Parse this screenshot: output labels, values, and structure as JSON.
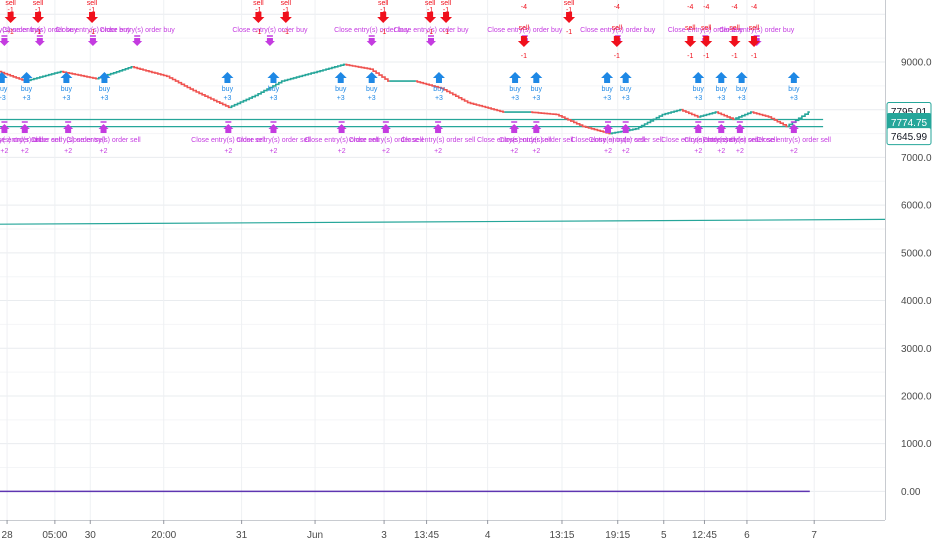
{
  "chart_data": {
    "type": "line",
    "title": "",
    "xlabel": "",
    "ylabel": "",
    "ylim": [
      -600,
      10300
    ],
    "y_ticks": [
      "0.00",
      "1000.00",
      "2000.00",
      "3000.00",
      "4000.00",
      "5000.00",
      "6000.00",
      "7000.00",
      "8000.00",
      "9000.00"
    ],
    "y_tick_values": [
      0,
      1000,
      2000,
      3000,
      4000,
      5000,
      6000,
      7000,
      8000,
      9000
    ],
    "x_range": [
      0,
      100
    ],
    "x_ticks": [
      {
        "label": "28",
        "x": 0.8
      },
      {
        "label": "05:00",
        "x": 6.2
      },
      {
        "label": "30",
        "x": 10.2
      },
      {
        "label": "20:00",
        "x": 18.5
      },
      {
        "label": "31",
        "x": 27.3
      },
      {
        "label": "Jun",
        "x": 35.6
      },
      {
        "label": "3",
        "x": 43.4
      },
      {
        "label": "13:45",
        "x": 48.2
      },
      {
        "label": "4",
        "x": 55.1
      },
      {
        "label": "13:15",
        "x": 63.5
      },
      {
        "label": "19:15",
        "x": 69.8
      },
      {
        "label": "5",
        "x": 75.0
      },
      {
        "label": "12:45",
        "x": 79.6
      },
      {
        "label": "6",
        "x": 84.4
      },
      {
        "label": "7",
        "x": 92.0
      }
    ],
    "price_tags": [
      {
        "label": "7795.01",
        "value": 7795.01,
        "style": "outline"
      },
      {
        "label": "7774.75",
        "value": 7774.75,
        "style": "filled"
      },
      {
        "label": "7645.99",
        "value": 7645.99,
        "style": "outline"
      }
    ],
    "series": [
      {
        "name": "price",
        "color_up": "#26a69a",
        "color_down": "#ef5350",
        "x": [
          0,
          3,
          7,
          11,
          15,
          19,
          22,
          26,
          29,
          32,
          35,
          39,
          42,
          44,
          47,
          50,
          53,
          57,
          60,
          63,
          66,
          69,
          72,
          75,
          77,
          79,
          81,
          83,
          85,
          87,
          89,
          91.5
        ],
        "values": [
          8800,
          8600,
          8800,
          8650,
          8900,
          8700,
          8400,
          8050,
          8300,
          8600,
          8750,
          8950,
          8850,
          8600,
          8600,
          8450,
          8150,
          7950,
          7950,
          7900,
          7650,
          7500,
          7600,
          7900,
          8000,
          7850,
          7950,
          7800,
          7950,
          7850,
          7650,
          7950
        ]
      },
      {
        "name": "upper-line",
        "color": "#26a69a",
        "x": [
          0,
          93
        ],
        "values": [
          7795.01,
          7795.01
        ]
      },
      {
        "name": "lower-line",
        "color": "#26a69a",
        "x": [
          0,
          93
        ],
        "values": [
          7645.99,
          7645.99
        ]
      },
      {
        "name": "trend-line",
        "color": "#26a69a",
        "x": [
          0,
          100
        ],
        "values": [
          5600,
          5700
        ]
      },
      {
        "name": "zero-line",
        "color": "#5e35b1",
        "x": [
          0,
          91.5
        ],
        "values": [
          0,
          0
        ]
      }
    ],
    "markers": [
      {
        "type": "close-buy",
        "x": 0.5,
        "label": "Close entry(s) order buy"
      },
      {
        "type": "close-buy",
        "x": 4.5,
        "label": "Close entry(s) order buy"
      },
      {
        "type": "close-buy",
        "x": 10.5,
        "label": "Close entry(s) order buy"
      },
      {
        "type": "close-buy",
        "x": 15.5,
        "label": "Close entry(s) order buy"
      },
      {
        "type": "close-buy",
        "x": 30.5,
        "label": "Close entry(s) order buy"
      },
      {
        "type": "close-buy",
        "x": 42.0,
        "label": "Close entry(s) order buy"
      },
      {
        "type": "close-buy",
        "x": 48.7,
        "label": "Close entry(s) order buy"
      },
      {
        "type": "close-buy",
        "x": 59.3,
        "label": "Close entry(s) order buy"
      },
      {
        "type": "close-buy",
        "x": 69.8,
        "label": "Close entry(s) order buy"
      },
      {
        "type": "close-buy",
        "x": 79.7,
        "label": "Close entry(s) order buy"
      },
      {
        "type": "close-buy",
        "x": 85.5,
        "label": "Close entry(s) order buy"
      },
      {
        "type": "sell",
        "x": 1.2,
        "label": "sell",
        "qty": "-1"
      },
      {
        "type": "sell",
        "x": 4.3,
        "label": "sell",
        "qty": "-1"
      },
      {
        "type": "sell",
        "x": 10.4,
        "label": "sell",
        "qty": "-1"
      },
      {
        "type": "sell",
        "x": 29.2,
        "label": "sell",
        "qty": "-1"
      },
      {
        "type": "sell",
        "x": 32.3,
        "label": "sell",
        "qty": "-1"
      },
      {
        "type": "sell",
        "x": 43.3,
        "label": "sell",
        "qty": "-1"
      },
      {
        "type": "sell",
        "x": 48.6,
        "label": "sell",
        "qty": "-1"
      },
      {
        "type": "sell",
        "x": 50.4,
        "label": "sell",
        "qty": "-1"
      },
      {
        "type": "sell",
        "x": 59.2,
        "label": "sell",
        "qty": "-4"
      },
      {
        "type": "sell",
        "x": 64.3,
        "label": "sell",
        "qty": "-1"
      },
      {
        "type": "sell",
        "x": 69.7,
        "label": "sell",
        "qty": "-4"
      },
      {
        "type": "sell",
        "x": 78.0,
        "label": "sell",
        "qty": "-4"
      },
      {
        "type": "sell",
        "x": 79.8,
        "label": "sell",
        "qty": "-4"
      },
      {
        "type": "sell",
        "x": 83.0,
        "label": "sell",
        "qty": "-4"
      },
      {
        "type": "sell",
        "x": 85.2,
        "label": "sell",
        "qty": "-4"
      },
      {
        "type": "buy",
        "x": 0.2,
        "label": "buy",
        "qty": "+3"
      },
      {
        "type": "buy",
        "x": 3.0,
        "label": "buy",
        "qty": "+3"
      },
      {
        "type": "buy",
        "x": 7.5,
        "label": "buy",
        "qty": "+3"
      },
      {
        "type": "buy",
        "x": 11.8,
        "label": "buy",
        "qty": "+3"
      },
      {
        "type": "buy",
        "x": 25.7,
        "label": "buy",
        "qty": "+3"
      },
      {
        "type": "buy",
        "x": 30.9,
        "label": "buy",
        "qty": "+3"
      },
      {
        "type": "buy",
        "x": 38.5,
        "label": "buy",
        "qty": "+3"
      },
      {
        "type": "buy",
        "x": 42.0,
        "label": "buy",
        "qty": "+3"
      },
      {
        "type": "buy",
        "x": 49.6,
        "label": "buy",
        "qty": "+3"
      },
      {
        "type": "buy",
        "x": 58.2,
        "label": "buy",
        "qty": "+3"
      },
      {
        "type": "buy",
        "x": 60.6,
        "label": "buy",
        "qty": "+3"
      },
      {
        "type": "buy",
        "x": 68.6,
        "label": "buy",
        "qty": "+3"
      },
      {
        "type": "buy",
        "x": 70.7,
        "label": "buy",
        "qty": "+3"
      },
      {
        "type": "buy",
        "x": 78.9,
        "label": "buy",
        "qty": "+3"
      },
      {
        "type": "buy",
        "x": 81.5,
        "label": "buy",
        "qty": "+3"
      },
      {
        "type": "buy",
        "x": 83.8,
        "label": "buy",
        "qty": "+3"
      },
      {
        "type": "buy",
        "x": 89.7,
        "label": "buy",
        "qty": "+3"
      },
      {
        "type": "close-sell",
        "x": 0.5,
        "label": "Close entry(s) order sell",
        "qty": "+2"
      },
      {
        "type": "close-sell",
        "x": 2.8,
        "label": "Close entry(s) order sell",
        "qty": "+2"
      },
      {
        "type": "close-sell",
        "x": 7.7,
        "label": "Close entry(s) order sell",
        "qty": "+2"
      },
      {
        "type": "close-sell",
        "x": 11.7,
        "label": "Close entry(s) order sell",
        "qty": "+2"
      },
      {
        "type": "close-sell",
        "x": 25.8,
        "label": "Close entry(s) order sell",
        "qty": "+2"
      },
      {
        "type": "close-sell",
        "x": 30.9,
        "label": "Close entry(s) order sell",
        "qty": "+2"
      },
      {
        "type": "close-sell",
        "x": 38.6,
        "label": "Close entry(s) order sell",
        "qty": "+2"
      },
      {
        "type": "close-sell",
        "x": 43.6,
        "label": "Close entry(s) order sell",
        "qty": "+2"
      },
      {
        "type": "close-sell",
        "x": 49.5,
        "label": "Close entry(s) order sell",
        "qty": "+2"
      },
      {
        "type": "close-sell",
        "x": 58.1,
        "label": "Close entry(s) order sell",
        "qty": "+2"
      },
      {
        "type": "close-sell",
        "x": 60.6,
        "label": "Close entry(s) order sell",
        "qty": "+2"
      },
      {
        "type": "close-sell",
        "x": 68.7,
        "label": "Close entry(s) order sell",
        "qty": "+2"
      },
      {
        "type": "close-sell",
        "x": 70.7,
        "label": "Close entry(s) order sell",
        "qty": "+2"
      },
      {
        "type": "close-sell",
        "x": 78.9,
        "label": "Close entry(s) order sell",
        "qty": "+2"
      },
      {
        "type": "close-sell",
        "x": 81.5,
        "label": "Close entry(s) order sell",
        "qty": "+2"
      },
      {
        "type": "close-sell",
        "x": 83.6,
        "label": "Close entry(s) order sell",
        "qty": "+2"
      },
      {
        "type": "close-sell",
        "x": 89.7,
        "label": "Close entry(s) order sell",
        "qty": "+2"
      }
    ]
  }
}
